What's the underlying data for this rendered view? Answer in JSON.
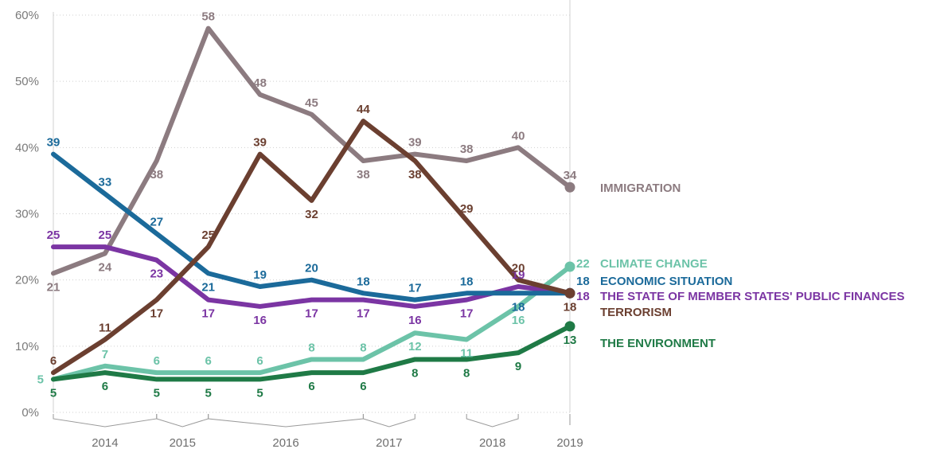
{
  "chart_data": {
    "type": "line",
    "title": "",
    "xlabel": "",
    "ylabel": "",
    "ylim": [
      0,
      60
    ],
    "y_ticks": [
      "0%",
      "10%",
      "20%",
      "30%",
      "40%",
      "50%",
      "60%"
    ],
    "x_axis_labels": [
      "2014",
      "2015",
      "2016",
      "2017",
      "2018",
      "2019"
    ],
    "grid": "horizontal dotted",
    "legend": "series labels at right end of lines",
    "series": [
      {
        "name": "IMMIGRATION",
        "color": "#8c7b80",
        "values": [
          21,
          24,
          38,
          58,
          48,
          45,
          38,
          39,
          38,
          40,
          34
        ],
        "labels": [
          "21",
          "24",
          "38",
          "58",
          "48",
          "45",
          "38",
          "39",
          "38",
          "40",
          "34"
        ]
      },
      {
        "name": "CLIMATE CHANGE",
        "color": "#6cc3a8",
        "values": [
          5,
          7,
          6,
          6,
          6,
          8,
          8,
          12,
          11,
          16,
          22
        ],
        "labels": [
          "5",
          "7",
          "6",
          "6",
          "6",
          "8",
          "8",
          "12",
          "11",
          "16",
          "22"
        ]
      },
      {
        "name": "ECONOMIC SITUATION",
        "color": "#1b6a9a",
        "values": [
          39,
          33,
          27,
          21,
          19,
          20,
          18,
          17,
          18,
          18,
          18
        ],
        "labels": [
          "39",
          "33",
          "27",
          "21",
          "19",
          "20",
          "18",
          "17",
          "18",
          "18",
          "18"
        ]
      },
      {
        "name": "THE STATE OF MEMBER STATES' PUBLIC FINANCES",
        "color": "#7b35a3",
        "values": [
          25,
          25,
          23,
          17,
          16,
          17,
          17,
          16,
          17,
          19,
          18
        ],
        "labels": [
          "25",
          "25",
          "23",
          "17",
          "16",
          "17",
          "17",
          "16",
          "17",
          "19",
          "18"
        ]
      },
      {
        "name": "TERRORISM",
        "color": "#6b3f30",
        "values": [
          6,
          11,
          17,
          25,
          39,
          32,
          44,
          38,
          29,
          20,
          18
        ],
        "labels": [
          "6",
          "11",
          "17",
          "25",
          "39",
          "32",
          "44",
          "38",
          "29",
          "20",
          "18"
        ]
      },
      {
        "name": "THE ENVIRONMENT",
        "color": "#1f7a46",
        "values": [
          5,
          6,
          5,
          5,
          5,
          6,
          6,
          8,
          8,
          9,
          13
        ],
        "labels": [
          "5",
          "6",
          "5",
          "5",
          "5",
          "6",
          "6",
          "8",
          "8",
          "9",
          "13"
        ]
      }
    ]
  }
}
